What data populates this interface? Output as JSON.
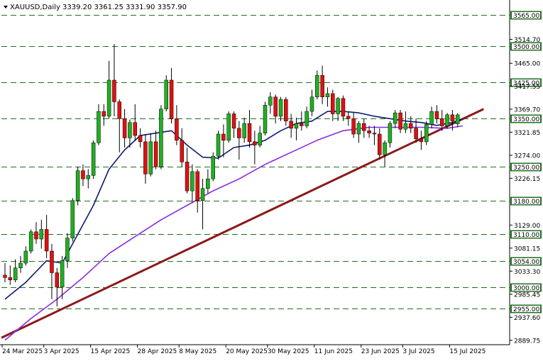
{
  "header": {
    "symbol_timeframe": "XAUUSD,Daily",
    "ohlc": "3339.20 3361.25 3331.90 3357.90"
  },
  "colors": {
    "background": "#ffffff",
    "bull": "#20b020",
    "bear": "#e01010",
    "wick": "#000000",
    "ma_fast": "#0b1a6e",
    "ma_slow": "#8a2be2",
    "trendline": "#8b1a1a",
    "level_line": "#1f6f1f",
    "level_box": "#1f6f1f",
    "grid": "#000000"
  },
  "chart_data": {
    "type": "candlestick",
    "symbol": "XAUUSD",
    "timeframe": "Daily",
    "ylim": [
      2889.7,
      3600
    ],
    "y_ticks": [
      "3514.70",
      "3465.00",
      "3417.55",
      "3369.70",
      "3321.85",
      "3274.00",
      "3226.15",
      "3129.00",
      "3081.15",
      "3033.30",
      "2985.45",
      "2937.60",
      "2889.75"
    ],
    "x_tick_labels": [
      "24 Mar 2025",
      "3 Apr 2025",
      "15 Apr 2025",
      "28 Apr 2025",
      "8 May 2025",
      "20 May 2025",
      "30 May 2025",
      "11 Jun 2025",
      "23 Jun 2025",
      "3 Jul 2025",
      "15 Jul 2025"
    ],
    "x_tick_index": [
      0,
      8,
      17,
      26,
      34,
      43,
      51,
      60,
      69,
      77,
      86
    ],
    "levels": [
      {
        "label": "3565.00",
        "value": 3565.0
      },
      {
        "label": "3500.00",
        "value": 3500.0
      },
      {
        "label": "3425.00",
        "value": 3425.0
      },
      {
        "label": "3350.00",
        "value": 3350.0
      },
      {
        "label": "3250.00",
        "value": 3250.0
      },
      {
        "label": "3180.00",
        "value": 3180.0
      },
      {
        "label": "3110.00",
        "value": 3110.0
      },
      {
        "label": "3054.00",
        "value": 3054.0
      },
      {
        "label": "3000.00",
        "value": 3000.0
      },
      {
        "label": "2955.00",
        "value": 2955.0
      }
    ],
    "candles": [
      [
        3025,
        3050,
        3010,
        3020
      ],
      [
        3020,
        3045,
        3005,
        3015
      ],
      [
        3015,
        3058,
        3010,
        3040
      ],
      [
        3040,
        3065,
        3030,
        3050
      ],
      [
        3050,
        3085,
        3045,
        3075
      ],
      [
        3075,
        3120,
        3070,
        3115
      ],
      [
        3115,
        3135,
        3090,
        3100
      ],
      [
        3100,
        3140,
        3080,
        3120
      ],
      [
        3120,
        3150,
        3060,
        3075
      ],
      [
        3075,
        3090,
        2975,
        3030
      ],
      [
        3030,
        3040,
        2960,
        3000
      ],
      [
        3000,
        3065,
        2975,
        3055
      ],
      [
        3055,
        3112,
        3040,
        3102
      ],
      [
        3102,
        3185,
        3095,
        3180
      ],
      [
        3180,
        3250,
        3170,
        3242
      ],
      [
        3242,
        3255,
        3210,
        3225
      ],
      [
        3225,
        3245,
        3205,
        3232
      ],
      [
        3232,
        3305,
        3225,
        3300
      ],
      [
        3300,
        3380,
        3295,
        3365
      ],
      [
        3365,
        3380,
        3335,
        3355
      ],
      [
        3355,
        3470,
        3350,
        3430
      ],
      [
        3430,
        3505,
        3355,
        3385
      ],
      [
        3385,
        3390,
        3280,
        3350
      ],
      [
        3350,
        3370,
        3290,
        3310
      ],
      [
        3310,
        3348,
        3290,
        3342
      ],
      [
        3342,
        3380,
        3305,
        3315
      ],
      [
        3315,
        3330,
        3290,
        3302
      ],
      [
        3302,
        3318,
        3215,
        3235
      ],
      [
        3235,
        3320,
        3230,
        3302
      ],
      [
        3302,
        3325,
        3245,
        3250
      ],
      [
        3250,
        3378,
        3245,
        3370
      ],
      [
        3370,
        3440,
        3365,
        3430
      ],
      [
        3430,
        3455,
        3340,
        3350
      ],
      [
        3350,
        3378,
        3295,
        3305
      ],
      [
        3305,
        3330,
        3250,
        3260
      ],
      [
        3260,
        3290,
        3195,
        3200
      ],
      [
        3200,
        3255,
        3175,
        3240
      ],
      [
        3240,
        3245,
        3155,
        3180
      ],
      [
        3180,
        3225,
        3120,
        3205
      ],
      [
        3205,
        3245,
        3195,
        3225
      ],
      [
        3225,
        3280,
        3220,
        3272
      ],
      [
        3272,
        3325,
        3265,
        3318
      ],
      [
        3318,
        3338,
        3270,
        3305
      ],
      [
        3305,
        3365,
        3300,
        3360
      ],
      [
        3360,
        3365,
        3310,
        3330
      ],
      [
        3330,
        3345,
        3265,
        3310
      ],
      [
        3310,
        3352,
        3300,
        3340
      ],
      [
        3340,
        3368,
        3290,
        3302
      ],
      [
        3302,
        3325,
        3255,
        3295
      ],
      [
        3295,
        3335,
        3290,
        3320
      ],
      [
        3320,
        3385,
        3315,
        3378
      ],
      [
        3378,
        3405,
        3360,
        3395
      ],
      [
        3395,
        3400,
        3340,
        3355
      ],
      [
        3355,
        3395,
        3345,
        3390
      ],
      [
        3390,
        3395,
        3335,
        3345
      ],
      [
        3345,
        3360,
        3310,
        3330
      ],
      [
        3330,
        3352,
        3305,
        3340
      ],
      [
        3340,
        3365,
        3325,
        3335
      ],
      [
        3335,
        3375,
        3330,
        3365
      ],
      [
        3365,
        3410,
        3355,
        3395
      ],
      [
        3395,
        3450,
        3390,
        3440
      ],
      [
        3440,
        3460,
        3380,
        3395
      ],
      [
        3395,
        3415,
        3375,
        3402
      ],
      [
        3402,
        3410,
        3345,
        3360
      ],
      [
        3360,
        3395,
        3345,
        3392
      ],
      [
        3392,
        3398,
        3345,
        3355
      ],
      [
        3355,
        3365,
        3335,
        3350
      ],
      [
        3350,
        3362,
        3310,
        3318
      ],
      [
        3318,
        3345,
        3300,
        3340
      ],
      [
        3340,
        3350,
        3310,
        3325
      ],
      [
        3325,
        3335,
        3310,
        3320
      ],
      [
        3320,
        3335,
        3295,
        3318
      ],
      [
        3318,
        3330,
        3265,
        3275
      ],
      [
        3275,
        3305,
        3250,
        3300
      ],
      [
        3300,
        3345,
        3290,
        3340
      ],
      [
        3340,
        3368,
        3330,
        3362
      ],
      [
        3362,
        3368,
        3320,
        3328
      ],
      [
        3328,
        3365,
        3320,
        3340
      ],
      [
        3340,
        3355,
        3320,
        3330
      ],
      [
        3330,
        3350,
        3300,
        3308
      ],
      [
        3308,
        3325,
        3285,
        3302
      ],
      [
        3302,
        3345,
        3295,
        3338
      ],
      [
        3338,
        3375,
        3330,
        3365
      ],
      [
        3365,
        3378,
        3340,
        3350
      ],
      [
        3350,
        3368,
        3325,
        3335
      ],
      [
        3335,
        3362,
        3330,
        3358
      ],
      [
        3358,
        3368,
        3325,
        3345
      ],
      [
        3339.2,
        3361.25,
        3331.9,
        3357.9
      ]
    ],
    "ma_fast": [
      [
        0,
        2975
      ],
      [
        4,
        3010
      ],
      [
        8,
        3055
      ],
      [
        11,
        3050
      ],
      [
        14,
        3110
      ],
      [
        17,
        3170
      ],
      [
        20,
        3245
      ],
      [
        23,
        3285
      ],
      [
        26,
        3315
      ],
      [
        29,
        3320
      ],
      [
        32,
        3325
      ],
      [
        35,
        3295
      ],
      [
        38,
        3270
      ],
      [
        41,
        3268
      ],
      [
        44,
        3290
      ],
      [
        47,
        3295
      ],
      [
        50,
        3305
      ],
      [
        53,
        3325
      ],
      [
        56,
        3340
      ],
      [
        59,
        3345
      ],
      [
        62,
        3365
      ],
      [
        65,
        3365
      ],
      [
        68,
        3362
      ],
      [
        71,
        3355
      ],
      [
        74,
        3350
      ],
      [
        77,
        3345
      ],
      [
        80,
        3342
      ],
      [
        83,
        3336
      ],
      [
        86,
        3342
      ],
      [
        88,
        3350
      ]
    ],
    "ma_slow": [
      [
        0,
        2890
      ],
      [
        5,
        2935
      ],
      [
        10,
        2975
      ],
      [
        15,
        3020
      ],
      [
        20,
        3070
      ],
      [
        25,
        3105
      ],
      [
        30,
        3140
      ],
      [
        35,
        3170
      ],
      [
        40,
        3200
      ],
      [
        45,
        3225
      ],
      [
        50,
        3255
      ],
      [
        55,
        3280
      ],
      [
        60,
        3305
      ],
      [
        65,
        3325
      ],
      [
        70,
        3332
      ],
      [
        75,
        3332
      ],
      [
        80,
        3332
      ],
      [
        85,
        3330
      ],
      [
        88,
        3335
      ]
    ],
    "trendline": {
      "from": [
        0,
        2895
      ],
      "to": [
        92,
        3370
      ]
    }
  }
}
